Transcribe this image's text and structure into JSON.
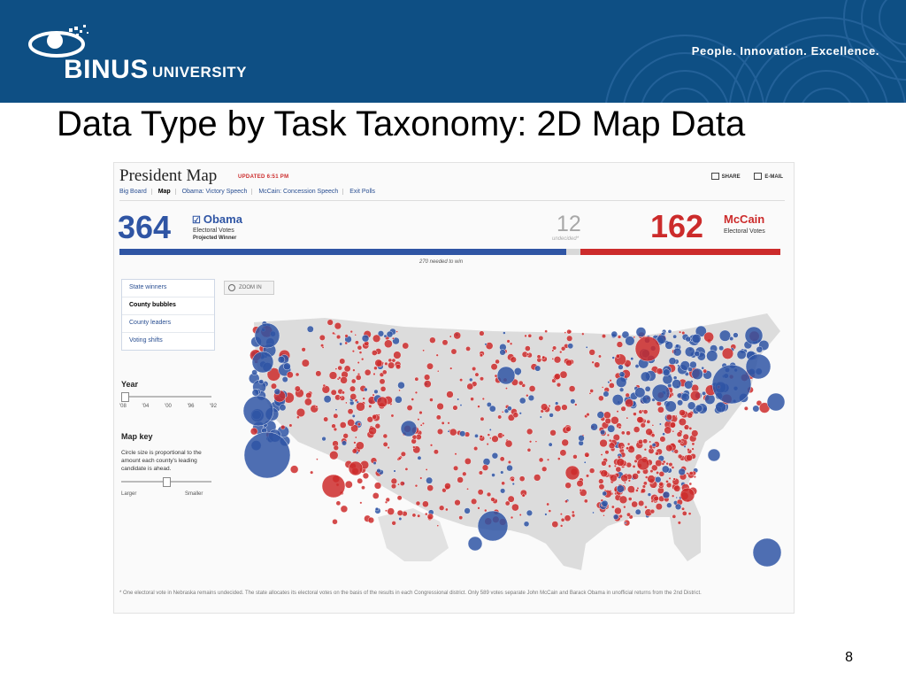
{
  "header": {
    "brand_name": "BINUS",
    "brand_sub": "UNIVERSITY",
    "tagline": "People. Innovation. Excellence."
  },
  "slide": {
    "title": "Data Type by Task Taxonomy: 2D Map Data",
    "number": "8"
  },
  "president_map": {
    "title": "President Map",
    "updated": "UPDATED 6:51 PM",
    "actions": [
      "SHARE",
      "E-MAIL"
    ],
    "tabs": [
      "Big Board",
      "Map",
      "Obama: Victory Speech",
      "McCain: Concession Speech",
      "Exit Polls"
    ],
    "active_tab": "Map",
    "obama": {
      "votes": "364",
      "name": "Obama",
      "label": "Electoral Votes",
      "status": "Projected Winner"
    },
    "undecided": {
      "votes": "12",
      "label": "undecided*"
    },
    "mccain": {
      "votes": "162",
      "name": "McCain",
      "label": "Electoral Votes"
    },
    "needed": "270 needed to win",
    "electoral_split": {
      "obama": 364,
      "undecided": 12,
      "mccain": 162
    },
    "menu": [
      "State winners",
      "County bubbles",
      "County leaders",
      "Voting shifts"
    ],
    "active_menu": "County bubbles",
    "zoom_label": "ZOOM IN",
    "year": {
      "title": "Year",
      "ticks": [
        "'08",
        "'04",
        "'00",
        "'96",
        "'92"
      ],
      "selected": "'08"
    },
    "map_key": {
      "title": "Map key",
      "description": "Circle size is proportional to the amount each county's leading candidate is ahead.",
      "larger": "Larger",
      "smaller": "Smaller"
    },
    "footnote": "* One electoral vote in Nebraska remains undecided. The state allocates its electoral votes on the basis of the results in each Congressional district. Only 589 votes separate John McCain and Barack Obama in unofficial returns from the 2nd District.",
    "colors": {
      "obama": "#2f55a4",
      "mccain": "#cc2b2b",
      "land": "#d9d9d9"
    }
  }
}
